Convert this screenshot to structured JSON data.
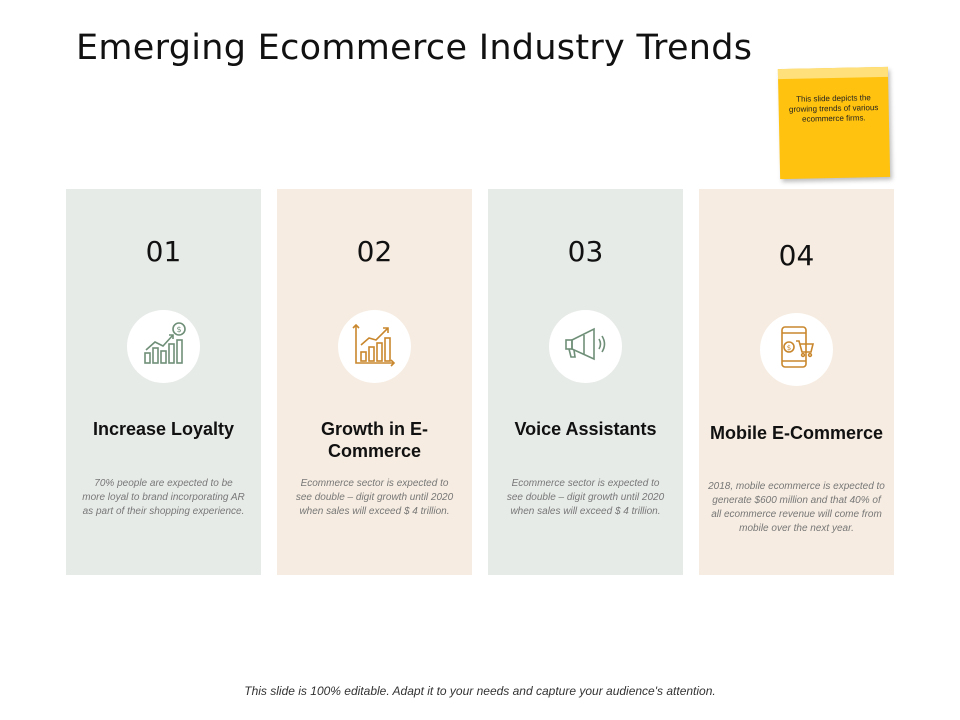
{
  "title": "Emerging Ecommerce Industry Trends",
  "sticky_note": {
    "text": "This slide depicts the growing trends of various ecommerce firms."
  },
  "cards": [
    {
      "number": "01",
      "icon": "bar-chart-dollar-icon",
      "heading": "Increase Loyalty",
      "description": "70% people are expected to be more loyal to brand incorporating AR as part of their shopping experience."
    },
    {
      "number": "02",
      "icon": "growth-chart-icon",
      "heading": "Growth in E-Commerce",
      "description": "Ecommerce sector is expected to see double – digit growth until 2020 when sales will exceed $ 4  trillion."
    },
    {
      "number": "03",
      "icon": "megaphone-icon",
      "heading": "Voice Assistants",
      "description": "Ecommerce sector is expected to see double – digit growth until 2020 when sales will exceed $ 4  trillion."
    },
    {
      "number": "04",
      "icon": "mobile-shopping-icon",
      "heading": "Mobile E-Commerce",
      "description": "2018, mobile ecommerce is expected to generate $600 million and that 40% of all ecommerce revenue will come from mobile over the next year."
    }
  ],
  "footer": "This slide is 100% editable. Adapt it to your needs and capture your audience's attention.",
  "colors": {
    "card_green": "#e7ebe8",
    "card_beige": "#f6ece1",
    "icon_green": "#6f8f78",
    "icon_orange": "#c9872d",
    "sticky": "#ffc20e"
  }
}
